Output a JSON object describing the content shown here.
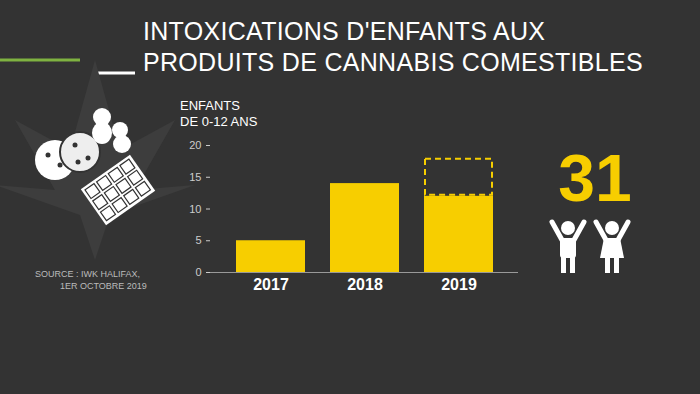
{
  "chart_data": {
    "type": "bar",
    "title": "INTOXICATIONS D'ENFANTS AUX\nPRODUITS DE CANNABIS COMESTIBLES",
    "y_label": "ENFANTS\nDE 0-12 ANS",
    "source": "SOURCE : IWK HALIFAX,\n          1ER OCTOBRE 2019",
    "annotations": [
      "31"
    ],
    "categories": [
      "2017",
      "2018",
      "2019"
    ],
    "series": [
      {
        "color": "#f7ce00",
        "values": [
          5,
          14,
          12
        ]
      },
      {
        "color": "#f7ce00",
        "values": [
          null,
          null,
          6
        ],
        "line_style": "dashed"
      }
    ],
    "stacked": true,
    "ylim": [
      0,
      20
    ],
    "yticks": [
      0,
      5,
      10,
      15,
      20
    ],
    "grid": false
  }
}
